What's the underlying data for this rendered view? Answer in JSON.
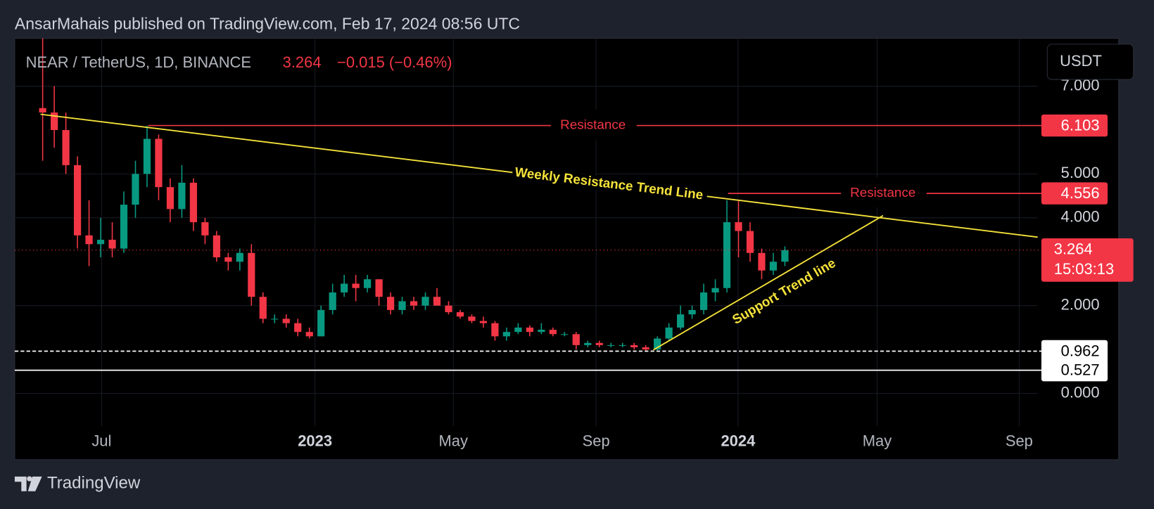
{
  "header": {
    "publisher": "AnsarMahais published on TradingView.com, Feb 17, 2024 08:56 UTC"
  },
  "currency_button": "USDT",
  "footer": {
    "brand": "TradingView"
  },
  "chart_data": {
    "type": "candlestick",
    "symbol": "NEAR / TetherUS, 1D, BINANCE",
    "change": "−0.015 (−0.46%)",
    "open": [
      6.5,
      6.4,
      6.0,
      5.2,
      3.6,
      3.4,
      3.5,
      3.3,
      4.3,
      5.0,
      5.8,
      4.7,
      4.2,
      4.8,
      3.9,
      3.6,
      3.1,
      3.0,
      3.2,
      2.2,
      1.7,
      1.7,
      1.6,
      1.4,
      1.3,
      1.9,
      2.3,
      2.5,
      2.4,
      2.6,
      2.2,
      1.9,
      2.1,
      2.0,
      2.2,
      2.0,
      1.85,
      1.75,
      1.65,
      1.6,
      1.3,
      1.4,
      1.5,
      1.4,
      1.45,
      1.35,
      1.35,
      1.1,
      1.15,
      1.1,
      1.1,
      1.1,
      1.05,
      1.0,
      1.25,
      1.5,
      1.8,
      1.9,
      2.3,
      2.4,
      3.9,
      3.7,
      3.2,
      2.8,
      3.0
    ],
    "high": [
      8.1,
      7.0,
      6.4,
      5.4,
      4.4,
      4.0,
      3.9,
      4.6,
      5.3,
      6.1,
      5.9,
      4.9,
      5.2,
      4.9,
      4.0,
      3.7,
      3.2,
      3.3,
      3.4,
      2.3,
      1.8,
      1.8,
      1.7,
      1.5,
      2.0,
      2.5,
      2.7,
      2.7,
      2.7,
      2.6,
      2.3,
      2.2,
      2.2,
      2.3,
      2.4,
      2.1,
      1.9,
      1.8,
      1.75,
      1.65,
      1.5,
      1.6,
      1.55,
      1.6,
      1.5,
      1.4,
      1.4,
      1.2,
      1.2,
      1.15,
      1.15,
      1.15,
      1.1,
      1.3,
      1.6,
      2.0,
      2.0,
      2.5,
      2.6,
      4.4,
      4.4,
      3.9,
      3.3,
      3.2,
      3.35
    ],
    "low": [
      5.3,
      5.6,
      5.0,
      3.3,
      2.9,
      3.1,
      3.1,
      3.2,
      4.0,
      4.7,
      4.4,
      3.9,
      4.0,
      3.7,
      3.4,
      3.0,
      2.8,
      2.8,
      2.0,
      1.6,
      1.6,
      1.5,
      1.3,
      1.25,
      1.3,
      1.8,
      2.2,
      2.1,
      2.3,
      2.0,
      1.8,
      1.8,
      1.9,
      1.9,
      2.0,
      1.8,
      1.7,
      1.6,
      1.5,
      1.2,
      1.2,
      1.35,
      1.3,
      1.35,
      1.3,
      1.3,
      1.0,
      1.05,
      1.05,
      1.05,
      1.05,
      1.0,
      0.96,
      0.98,
      1.2,
      1.45,
      1.7,
      1.8,
      2.1,
      2.3,
      3.1,
      3.0,
      2.6,
      2.7,
      2.9
    ],
    "close": [
      6.4,
      6.0,
      5.2,
      3.6,
      3.4,
      3.5,
      3.3,
      4.3,
      5.0,
      5.8,
      4.7,
      4.2,
      4.8,
      3.9,
      3.6,
      3.1,
      3.0,
      3.2,
      2.2,
      1.7,
      1.7,
      1.6,
      1.4,
      1.3,
      1.9,
      2.3,
      2.5,
      2.4,
      2.6,
      2.2,
      1.9,
      2.1,
      2.0,
      2.2,
      2.0,
      1.85,
      1.75,
      1.65,
      1.6,
      1.3,
      1.4,
      1.5,
      1.4,
      1.45,
      1.35,
      1.35,
      1.1,
      1.15,
      1.1,
      1.1,
      1.1,
      1.05,
      1.0,
      1.25,
      1.5,
      1.8,
      1.9,
      2.3,
      2.4,
      3.9,
      3.7,
      3.2,
      2.8,
      3.0,
      3.264
    ],
    "up_color": "#089981",
    "down_color": "#f23645",
    "last_price_color": "#f23645",
    "countdown": "15:03:13",
    "xlim": [
      -2.41,
      85.8
    ],
    "xticks": [
      {
        "value": 5.08,
        "label": "Jul"
      },
      {
        "value": 23.48,
        "label": "2023"
      },
      {
        "value": 35.41,
        "label": "May"
      },
      {
        "value": 47.72,
        "label": "Sep"
      },
      {
        "value": 59.96,
        "label": "2024"
      },
      {
        "value": 71.95,
        "label": "May"
      },
      {
        "value": 84.2,
        "label": "Sep"
      }
    ],
    "ylim": [
      -1.51,
      8.09
    ],
    "yticks": [
      {
        "value": 0,
        "label": "0.000"
      },
      {
        "value": 2,
        "label": "2.000"
      },
      {
        "value": 4,
        "label": "4.000"
      },
      {
        "value": 5,
        "label": "5.000"
      },
      {
        "value": 7,
        "label": "7.000"
      }
    ],
    "grid": true,
    "price_lines": [
      {
        "value": 6.103,
        "start": 9.1,
        "label": "Resistance",
        "color": "#f23645",
        "style": "solid"
      },
      {
        "value": 4.556,
        "start": 59.1,
        "label": "Resistance",
        "color": "#f23645",
        "style": "solid"
      },
      {
        "value": 0.962,
        "start": -2.41,
        "color": "#ffffff",
        "style": "dashed"
      },
      {
        "value": 0.527,
        "start": -2.41,
        "color": "#ffffff",
        "style": "solid"
      }
    ],
    "trend_lines": [
      {
        "label": "Weekly Resistance Trend Line",
        "color": "#f5e23a",
        "x": [
          -0.19,
          85.8
        ],
        "y": [
          6.36,
          3.56
        ]
      },
      {
        "label": "Support Trend line",
        "color": "#f5e23a",
        "x": [
          52.66,
          72.46
        ],
        "y": [
          0.99,
          4.05
        ]
      }
    ]
  }
}
